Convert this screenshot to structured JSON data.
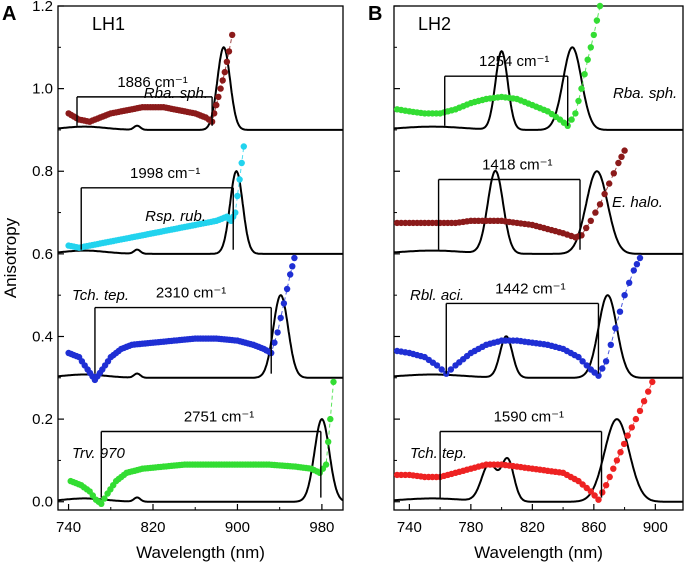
{
  "chart_data": [
    {
      "panel_letter": "A",
      "title": "LH1",
      "type": "line",
      "xlabel": "Wavelength (nm)",
      "ylabel": "Anisotropy",
      "xlim": [
        730,
        1000
      ],
      "ylim": [
        -0.02,
        1.2
      ],
      "xticks": [
        740,
        820,
        900,
        980
      ],
      "xtick_labels": [
        "740",
        "820",
        "900",
        "980"
      ],
      "yticks": [
        0.0,
        0.2,
        0.4,
        0.6,
        0.8,
        1.0,
        1.2
      ],
      "ytick_labels": [
        "0.0",
        "0.2",
        "0.4",
        "0.6",
        "0.8",
        "1.0",
        "1.2"
      ],
      "series": [
        {
          "name": "Rba. sph.",
          "label": "Rba. sph.",
          "color": "#8b1a1a",
          "baseline": 0.9,
          "peak": 887,
          "peak_height": 0.2,
          "peak_width": 6,
          "band_start": 748,
          "band_end": 876,
          "band_value": 0.98,
          "band_label": "1886 cm⁻¹",
          "aniso": [
            [
              740,
              0.94
            ],
            [
              750,
              0.925
            ],
            [
              760,
              0.92
            ],
            [
              770,
              0.93
            ],
            [
              780,
              0.94
            ],
            [
              790,
              0.945
            ],
            [
              800,
              0.95
            ],
            [
              810,
              0.955
            ],
            [
              820,
              0.955
            ],
            [
              830,
              0.955
            ],
            [
              840,
              0.95
            ],
            [
              850,
              0.945
            ],
            [
              860,
              0.94
            ],
            [
              870,
              0.93
            ],
            [
              876,
              0.92
            ],
            [
              880,
              0.96
            ],
            [
              884,
              1.0
            ],
            [
              888,
              1.04
            ],
            [
              892,
              1.09
            ],
            [
              895,
              1.13
            ]
          ]
        },
        {
          "name": "Rsp. rub.",
          "label": "Rsp. rub.",
          "color": "#22d3ee",
          "baseline": 0.6,
          "peak": 899,
          "peak_height": 0.2,
          "peak_width": 6,
          "band_start": 752,
          "band_end": 896,
          "band_value": 0.76,
          "band_label": "1998 cm⁻¹",
          "aniso": [
            [
              740,
              0.62
            ],
            [
              750,
              0.615
            ],
            [
              760,
              0.62
            ],
            [
              770,
              0.625
            ],
            [
              780,
              0.63
            ],
            [
              790,
              0.635
            ],
            [
              800,
              0.64
            ],
            [
              810,
              0.645
            ],
            [
              820,
              0.65
            ],
            [
              830,
              0.655
            ],
            [
              840,
              0.66
            ],
            [
              850,
              0.665
            ],
            [
              860,
              0.67
            ],
            [
              870,
              0.675
            ],
            [
              880,
              0.68
            ],
            [
              890,
              0.69
            ],
            [
              894,
              0.68
            ],
            [
              898,
              0.7
            ],
            [
              902,
              0.78
            ],
            [
              906,
              0.86
            ]
          ]
        },
        {
          "name": "Tch. tep.",
          "label": "Tch. tep.",
          "color": "#1f2fd4",
          "baseline": 0.3,
          "peak": 941,
          "peak_height": 0.2,
          "peak_width": 7,
          "band_start": 765,
          "band_end": 932,
          "band_value": 0.47,
          "band_label": "2310 cm⁻¹",
          "aniso": [
            [
              740,
              0.36
            ],
            [
              750,
              0.35
            ],
            [
              758,
              0.32
            ],
            [
              765,
              0.295
            ],
            [
              772,
              0.32
            ],
            [
              780,
              0.35
            ],
            [
              790,
              0.37
            ],
            [
              800,
              0.38
            ],
            [
              820,
              0.385
            ],
            [
              840,
              0.39
            ],
            [
              860,
              0.395
            ],
            [
              880,
              0.395
            ],
            [
              900,
              0.39
            ],
            [
              915,
              0.38
            ],
            [
              925,
              0.37
            ],
            [
              932,
              0.36
            ],
            [
              938,
              0.41
            ],
            [
              944,
              0.48
            ],
            [
              950,
              0.55
            ],
            [
              954,
              0.59
            ]
          ]
        },
        {
          "name": "Trv. 970",
          "label": "Trv. 970",
          "color": "#33dd33",
          "baseline": 0.0,
          "peak": 980,
          "peak_height": 0.2,
          "peak_width": 7,
          "band_start": 771,
          "band_end": 979,
          "band_value": 0.17,
          "band_label": "2751 cm⁻¹",
          "aniso": [
            [
              742,
              0.05
            ],
            [
              752,
              0.04
            ],
            [
              760,
              0.025
            ],
            [
              766,
              0.005
            ],
            [
              771,
              -0.005
            ],
            [
              777,
              0.02
            ],
            [
              785,
              0.05
            ],
            [
              795,
              0.07
            ],
            [
              810,
              0.08
            ],
            [
              830,
              0.085
            ],
            [
              850,
              0.09
            ],
            [
              870,
              0.09
            ],
            [
              900,
              0.09
            ],
            [
              930,
              0.09
            ],
            [
              955,
              0.085
            ],
            [
              970,
              0.08
            ],
            [
              978,
              0.07
            ],
            [
              984,
              0.09
            ],
            [
              988,
              0.2
            ],
            [
              991,
              0.29
            ]
          ]
        }
      ],
      "blips": [
        805
      ]
    },
    {
      "panel_letter": "B",
      "title": "LH2",
      "type": "line",
      "xlabel": "Wavelength (nm)",
      "ylabel": "",
      "xlim": [
        730,
        918
      ],
      "ylim": [
        -0.02,
        1.2
      ],
      "xticks": [
        740,
        780,
        820,
        860,
        900
      ],
      "xtick_labels": [
        "740",
        "780",
        "820",
        "860",
        "900"
      ],
      "yticks": [
        0.0,
        0.2,
        0.4,
        0.6,
        0.8,
        1.0,
        1.2
      ],
      "series": [
        {
          "name": "Rba. sph.",
          "label": "Rba. sph.",
          "color": "#33dd33",
          "baseline": 0.9,
          "peaks": [
            [
              800,
              0.19,
              4
            ],
            [
              846,
              0.2,
              6
            ]
          ],
          "band_start": 763,
          "band_end": 843,
          "band_value": 1.03,
          "band_label": "1254 cm⁻¹",
          "aniso": [
            [
              732,
              0.95
            ],
            [
              740,
              0.945
            ],
            [
              750,
              0.94
            ],
            [
              760,
              0.94
            ],
            [
              770,
              0.95
            ],
            [
              780,
              0.965
            ],
            [
              790,
              0.975
            ],
            [
              800,
              0.98
            ],
            [
              810,
              0.975
            ],
            [
              820,
              0.96
            ],
            [
              830,
              0.945
            ],
            [
              838,
              0.925
            ],
            [
              843,
              0.91
            ],
            [
              848,
              0.94
            ],
            [
              852,
              1.0
            ],
            [
              856,
              1.07
            ],
            [
              860,
              1.13
            ],
            [
              864,
              1.2
            ]
          ]
        },
        {
          "name": "E. halo.",
          "label": "E. halo.",
          "color": "#8b1a1a",
          "baseline": 0.6,
          "peaks": [
            [
              796,
              0.2,
              5
            ],
            [
              862,
              0.2,
              7
            ]
          ],
          "band_start": 759,
          "band_end": 851,
          "band_value": 0.78,
          "band_label": "1418 cm⁻¹",
          "aniso": [
            [
              732,
              0.675
            ],
            [
              740,
              0.675
            ],
            [
              750,
              0.675
            ],
            [
              760,
              0.675
            ],
            [
              770,
              0.675
            ],
            [
              780,
              0.68
            ],
            [
              790,
              0.68
            ],
            [
              800,
              0.68
            ],
            [
              810,
              0.675
            ],
            [
              820,
              0.67
            ],
            [
              830,
              0.66
            ],
            [
              840,
              0.65
            ],
            [
              848,
              0.64
            ],
            [
              852,
              0.645
            ],
            [
              858,
              0.68
            ],
            [
              864,
              0.72
            ],
            [
              870,
              0.77
            ],
            [
              876,
              0.82
            ],
            [
              880,
              0.85
            ]
          ]
        },
        {
          "name": "Rbl. aci.",
          "label": "Rbl. aci.",
          "color": "#1f2fd4",
          "baseline": 0.3,
          "peaks": [
            [
              803,
              0.1,
              4
            ],
            [
              869,
              0.2,
              6
            ]
          ],
          "band_start": 764,
          "band_end": 863,
          "band_value": 0.48,
          "band_label": "1442 cm⁻¹",
          "aniso": [
            [
              732,
              0.365
            ],
            [
              740,
              0.36
            ],
            [
              750,
              0.35
            ],
            [
              758,
              0.33
            ],
            [
              764,
              0.31
            ],
            [
              770,
              0.33
            ],
            [
              780,
              0.36
            ],
            [
              790,
              0.38
            ],
            [
              800,
              0.39
            ],
            [
              810,
              0.39
            ],
            [
              820,
              0.385
            ],
            [
              830,
              0.38
            ],
            [
              840,
              0.37
            ],
            [
              850,
              0.35
            ],
            [
              858,
              0.32
            ],
            [
              863,
              0.305
            ],
            [
              868,
              0.34
            ],
            [
              874,
              0.42
            ],
            [
              880,
              0.5
            ],
            [
              886,
              0.56
            ],
            [
              890,
              0.59
            ]
          ]
        },
        {
          "name": "Tch. tep.",
          "label": "Tch. tep.",
          "color": "#ee2222",
          "baseline": 0.0,
          "peaks": [
            [
              792,
              0.09,
              5
            ],
            [
              804,
              0.1,
              4
            ],
            [
              875,
              0.2,
              8
            ]
          ],
          "band_start": 760,
          "band_end": 865,
          "band_value": 0.17,
          "band_label": "1590 cm⁻¹",
          "aniso": [
            [
              732,
              0.065
            ],
            [
              740,
              0.065
            ],
            [
              750,
              0.06
            ],
            [
              760,
              0.06
            ],
            [
              770,
              0.07
            ],
            [
              780,
              0.08
            ],
            [
              790,
              0.09
            ],
            [
              800,
              0.09
            ],
            [
              810,
              0.085
            ],
            [
              820,
              0.08
            ],
            [
              830,
              0.075
            ],
            [
              840,
              0.07
            ],
            [
              850,
              0.05
            ],
            [
              858,
              0.025
            ],
            [
              863,
              0.005
            ],
            [
              868,
              0.04
            ],
            [
              875,
              0.1
            ],
            [
              882,
              0.16
            ],
            [
              890,
              0.22
            ],
            [
              898,
              0.29
            ]
          ]
        }
      ],
      "blips": []
    }
  ]
}
